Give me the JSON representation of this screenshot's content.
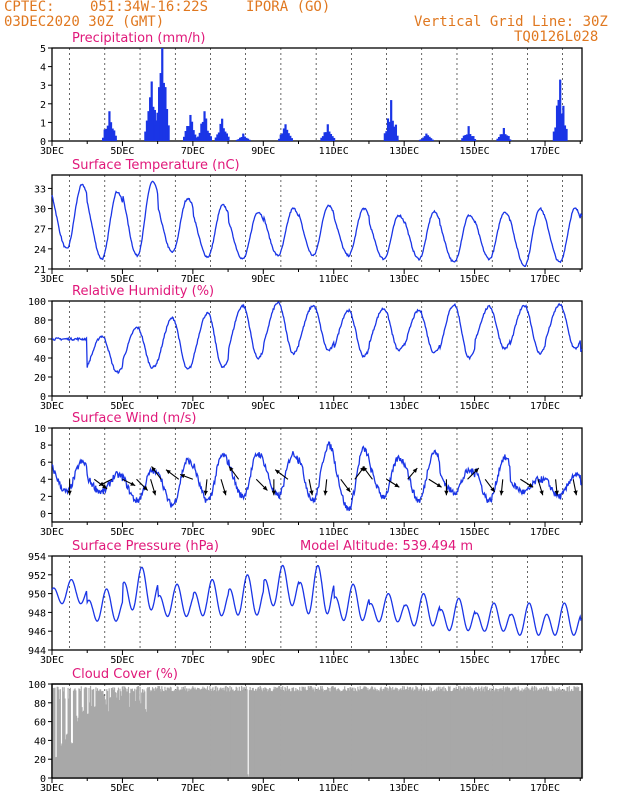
{
  "header": {
    "source": "CPTEC:",
    "coords": "051:34W-16:22S",
    "station": "IPORA (GO)",
    "date": "03DEC2020 30Z (GMT)",
    "grid_note": "Vertical Grid Line: 30Z",
    "code": "TQ0126L028"
  },
  "x_ticks": [
    "3DEC",
    "5DEC",
    "7DEC",
    "9DEC",
    "11DEC",
    "13DEC",
    "15DEC",
    "17DEC"
  ],
  "colors": {
    "header": "#e07820",
    "title": "#e0187a",
    "line": "#1a35e6",
    "bar": "#1a35e6",
    "cloud": "#a8a8a8",
    "wind_arrow": "#000000"
  },
  "chart_data": [
    {
      "type": "bar",
      "title": "Precipitation (mm/h)",
      "ylim": [
        0,
        5
      ],
      "yticks": [
        "0",
        "1",
        "2",
        "3",
        "4",
        "5"
      ],
      "grid": "vertical dashed",
      "events": [
        {
          "day": 4.6,
          "peak": 1.6
        },
        {
          "day": 5.8,
          "peak": 3.2
        },
        {
          "day": 6.1,
          "peak": 5.0
        },
        {
          "day": 6.9,
          "peak": 1.4
        },
        {
          "day": 7.3,
          "peak": 1.6
        },
        {
          "day": 7.8,
          "peak": 1.2
        },
        {
          "day": 8.4,
          "peak": 0.4
        },
        {
          "day": 9.6,
          "peak": 0.9
        },
        {
          "day": 10.8,
          "peak": 0.9
        },
        {
          "day": 12.6,
          "peak": 2.2
        },
        {
          "day": 13.6,
          "peak": 0.4
        },
        {
          "day": 14.8,
          "peak": 0.8
        },
        {
          "day": 15.8,
          "peak": 0.7
        },
        {
          "day": 17.4,
          "peak": 3.3
        }
      ]
    },
    {
      "type": "line",
      "title": "Surface Temperature (nC)",
      "ylim": [
        21,
        35
      ],
      "yticks": [
        "21",
        "24",
        "27",
        "30",
        "33"
      ],
      "min_max": [
        [
          24,
          33.5
        ],
        [
          22.5,
          32.5
        ],
        [
          23,
          34
        ],
        [
          23.5,
          31.5
        ],
        [
          22.8,
          30.5
        ],
        [
          22.5,
          29.5
        ],
        [
          23,
          30
        ],
        [
          23,
          30.5
        ],
        [
          23,
          30
        ],
        [
          22.5,
          29
        ],
        [
          22.5,
          29.5
        ],
        [
          22,
          29
        ],
        [
          22.5,
          29.5
        ],
        [
          21.5,
          30
        ],
        [
          22,
          30
        ],
        [
          23,
          31
        ],
        [
          26.5,
          28
        ]
      ]
    },
    {
      "type": "line",
      "title": "Relative Humidity (%)",
      "ylim": [
        0,
        100
      ],
      "yticks": [
        "0",
        "20",
        "40",
        "60",
        "80",
        "100"
      ],
      "min_max": [
        [
          60,
          60
        ],
        [
          25,
          63
        ],
        [
          30,
          72
        ],
        [
          28,
          82
        ],
        [
          30,
          87
        ],
        [
          40,
          95
        ],
        [
          45,
          98
        ],
        [
          48,
          95
        ],
        [
          42,
          90
        ],
        [
          48,
          92
        ],
        [
          46,
          90
        ],
        [
          40,
          96
        ],
        [
          50,
          94
        ],
        [
          45,
          95
        ],
        [
          50,
          96
        ],
        [
          35,
          91
        ],
        [
          60,
          82
        ]
      ]
    },
    {
      "type": "line",
      "title": "Surface Wind (m/s)",
      "ylim": [
        -1,
        10
      ],
      "yticks": [
        "0",
        "2",
        "4",
        "6",
        "8",
        "10"
      ],
      "speed_min_max": [
        [
          2.5,
          6.0
        ],
        [
          2.5,
          4.5
        ],
        [
          1.5,
          5.0
        ],
        [
          1.0,
          6.2
        ],
        [
          1.5,
          6.8
        ],
        [
          2.0,
          7.0
        ],
        [
          2.0,
          7.0
        ],
        [
          1.5,
          8.0
        ],
        [
          0.5,
          7.5
        ],
        [
          2.0,
          6.5
        ],
        [
          1.5,
          7.2
        ],
        [
          2.5,
          5.0
        ],
        [
          1.5,
          6.5
        ],
        [
          2.5,
          4.0
        ],
        [
          2.0,
          4.5
        ],
        [
          2.5,
          4.0
        ],
        [
          2.5,
          3.5
        ]
      ],
      "arrows": [
        {
          "day": 3.5,
          "dx": 0.0,
          "dy": -1.0
        },
        {
          "day": 4.2,
          "dx": 0.8,
          "dy": -0.6
        },
        {
          "day": 4.7,
          "dx": -0.8,
          "dy": -0.4
        },
        {
          "day": 5.0,
          "dx": 0.8,
          "dy": -0.4
        },
        {
          "day": 5.4,
          "dx": 0.7,
          "dy": -0.7
        },
        {
          "day": 5.8,
          "dx": 0.3,
          "dy": -1.0
        },
        {
          "day": 6.1,
          "dx": -0.6,
          "dy": 0.8
        },
        {
          "day": 6.6,
          "dx": -0.8,
          "dy": 0.6
        },
        {
          "day": 7.0,
          "dx": -0.8,
          "dy": 0.3
        },
        {
          "day": 7.4,
          "dx": -0.1,
          "dy": -1.0
        },
        {
          "day": 7.8,
          "dx": 0.3,
          "dy": -1.0
        },
        {
          "day": 8.3,
          "dx": -0.6,
          "dy": 0.8
        },
        {
          "day": 8.8,
          "dx": 0.7,
          "dy": -0.7
        },
        {
          "day": 9.3,
          "dx": 0.0,
          "dy": -1.0
        },
        {
          "day": 9.7,
          "dx": -0.8,
          "dy": 0.6
        },
        {
          "day": 10.3,
          "dx": 0.2,
          "dy": -1.0
        },
        {
          "day": 10.8,
          "dx": -0.1,
          "dy": -1.0
        },
        {
          "day": 11.2,
          "dx": 0.6,
          "dy": -0.8
        },
        {
          "day": 11.6,
          "dx": 0.6,
          "dy": 0.8
        },
        {
          "day": 12.1,
          "dx": -0.6,
          "dy": 0.8
        },
        {
          "day": 12.5,
          "dx": 0.8,
          "dy": -0.5
        },
        {
          "day": 13.1,
          "dx": 0.6,
          "dy": 0.7
        },
        {
          "day": 13.7,
          "dx": 0.8,
          "dy": -0.5
        },
        {
          "day": 14.2,
          "dx": 0.0,
          "dy": -1.0
        },
        {
          "day": 14.8,
          "dx": 0.7,
          "dy": 0.7
        },
        {
          "day": 15.3,
          "dx": 0.6,
          "dy": -0.8
        },
        {
          "day": 15.8,
          "dx": -0.1,
          "dy": -1.0
        },
        {
          "day": 16.3,
          "dx": 0.8,
          "dy": -0.5
        },
        {
          "day": 16.8,
          "dx": 0.3,
          "dy": -1.0
        },
        {
          "day": 17.3,
          "dx": 0.1,
          "dy": -1.0
        },
        {
          "day": 17.8,
          "dx": 0.2,
          "dy": -1.0
        }
      ]
    },
    {
      "type": "line",
      "title": "Surface Pressure (hPa)",
      "annotation": "Model Altitude: 539.494 m",
      "ylim": [
        944,
        954
      ],
      "yticks": [
        "944",
        "946",
        "948",
        "950",
        "952",
        "954"
      ],
      "min_max": [
        [
          948.5,
          951.5
        ],
        [
          946.5,
          950.5
        ],
        [
          947.5,
          952.8
        ],
        [
          947,
          951
        ],
        [
          947,
          951.5
        ],
        [
          947,
          952
        ],
        [
          948,
          953
        ],
        [
          947,
          953
        ],
        [
          946.5,
          951
        ],
        [
          946.5,
          950
        ],
        [
          946,
          950
        ],
        [
          945.5,
          949.5
        ],
        [
          945.5,
          949
        ],
        [
          945,
          949
        ],
        [
          945,
          949
        ],
        [
          944.5,
          948.5
        ],
        [
          944,
          947.5
        ]
      ]
    },
    {
      "type": "area",
      "title": "Cloud Cover (%)",
      "ylim": [
        0,
        100
      ],
      "yticks": [
        "0",
        "20",
        "40",
        "60",
        "80",
        "100"
      ],
      "base_percent": 95,
      "dips": [
        {
          "day": 3.1,
          "val": 15
        },
        {
          "day": 3.25,
          "val": 30
        },
        {
          "day": 3.4,
          "val": 40
        },
        {
          "day": 3.55,
          "val": 35
        },
        {
          "day": 3.7,
          "val": 60
        },
        {
          "day": 3.85,
          "val": 70
        },
        {
          "day": 4.0,
          "val": 65
        },
        {
          "day": 4.2,
          "val": 75
        },
        {
          "day": 4.5,
          "val": 80
        },
        {
          "day": 4.8,
          "val": 85
        },
        {
          "day": 5.2,
          "val": 88
        },
        {
          "day": 5.6,
          "val": 90
        },
        {
          "day": 8.55,
          "val": 0
        },
        {
          "day": 9.1,
          "val": 92
        },
        {
          "day": 10.2,
          "val": 93
        }
      ]
    }
  ]
}
